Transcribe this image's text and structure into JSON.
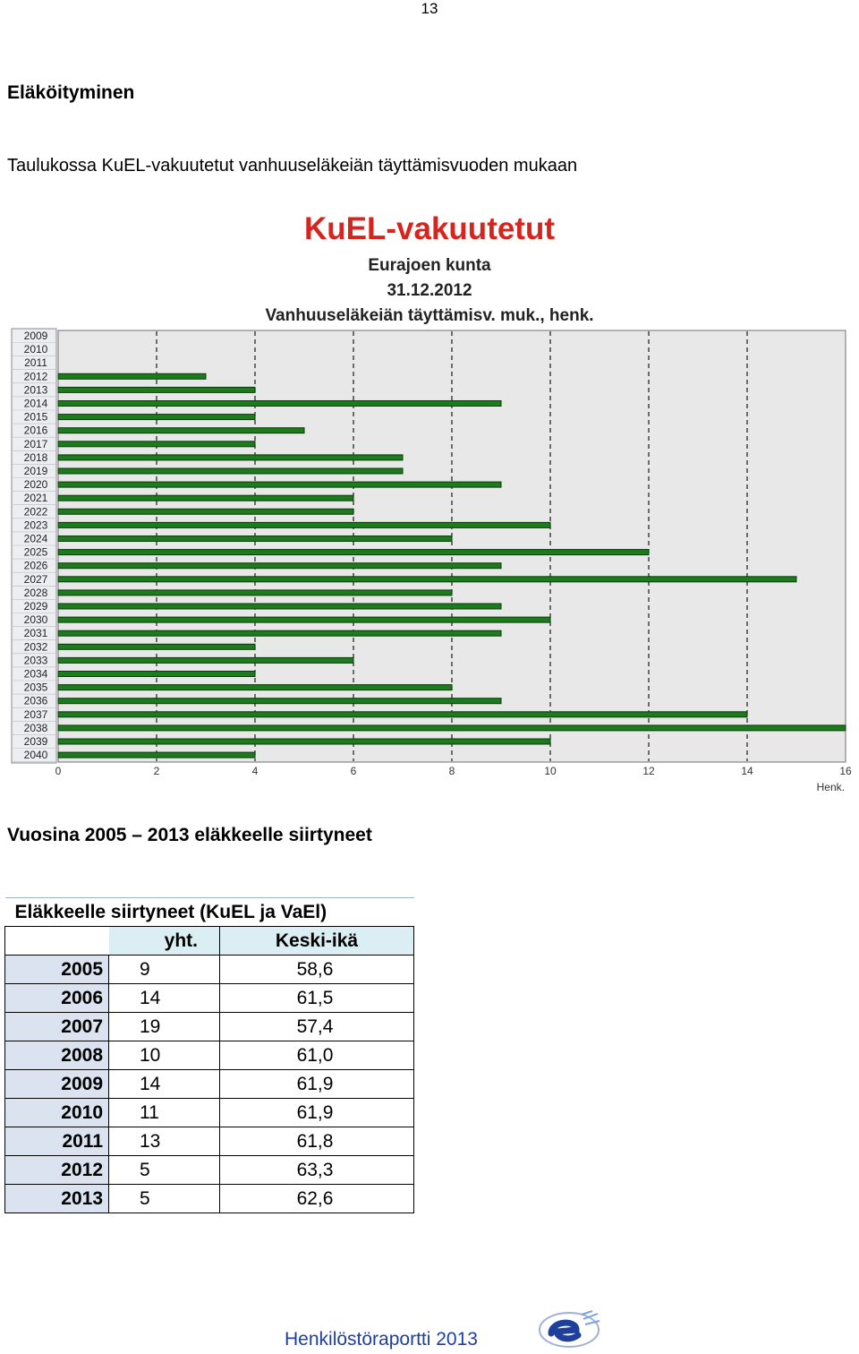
{
  "page_number": "13",
  "section_heading": "Eläköityminen",
  "intro_text": "Taulukossa KuEL-vakuutetut vanhuuseläkeiän täyttämisvuoden mukaan",
  "chart_data": {
    "type": "bar",
    "orientation": "horizontal",
    "title": "KuEL-vakuutetut",
    "subtitle_lines": [
      "Eurajoen kunta",
      "31.12.2012",
      "Vanhuuseläkeiän täyttämisv. muk., henk."
    ],
    "xlabel": "Henk.",
    "ylabel": "",
    "xlim": [
      0,
      16
    ],
    "x_ticks": [
      "0",
      "2",
      "4",
      "6",
      "8",
      "10",
      "12",
      "14",
      "16"
    ],
    "grid": "vertical dashed",
    "categories": [
      "2009",
      "2010",
      "2011",
      "2012",
      "2013",
      "2014",
      "2015",
      "2016",
      "2017",
      "2018",
      "2019",
      "2020",
      "2021",
      "2022",
      "2023",
      "2024",
      "2025",
      "2026",
      "2027",
      "2028",
      "2029",
      "2030",
      "2031",
      "2032",
      "2033",
      "2034",
      "2035",
      "2036",
      "2037",
      "2038",
      "2039",
      "2040"
    ],
    "values": [
      0,
      0,
      0,
      3,
      4,
      9,
      4,
      5,
      4,
      7,
      7,
      9,
      6,
      6,
      10,
      8,
      12,
      9,
      15,
      8,
      9,
      10,
      9,
      4,
      6,
      4,
      8,
      9,
      14,
      16,
      10,
      4
    ],
    "colors": {
      "title": "#d9231d",
      "bar": "#1d7a1d",
      "bar_edge": "#0b3a0b",
      "plot_bg": "#e8e8e8",
      "label_bg": "#eceef2"
    }
  },
  "sub_heading": "Vuosina 2005 – 2013 eläkkeelle siirtyneet",
  "retire_table": {
    "caption": "Eläkkeelle siirtyneet (KuEL ja VaEl)",
    "headers": [
      "",
      "yht.",
      "Keski-ikä"
    ],
    "rows": [
      {
        "year": "2005",
        "count": "9",
        "age": "58,6"
      },
      {
        "year": "2006",
        "count": "14",
        "age": "61,5"
      },
      {
        "year": "2007",
        "count": "19",
        "age": "57,4"
      },
      {
        "year": "2008",
        "count": "10",
        "age": "61,0"
      },
      {
        "year": "2009",
        "count": "14",
        "age": "61,9"
      },
      {
        "year": "2010",
        "count": "11",
        "age": "61,9"
      },
      {
        "year": "2011",
        "count": "13",
        "age": "61,8"
      },
      {
        "year": "2012",
        "count": "5",
        "age": "63,3"
      },
      {
        "year": "2013",
        "count": "5",
        "age": "62,6"
      }
    ]
  },
  "footer": {
    "text": "Henkilöstöraportti 2013",
    "logo_icon": "e-logo-icon"
  }
}
